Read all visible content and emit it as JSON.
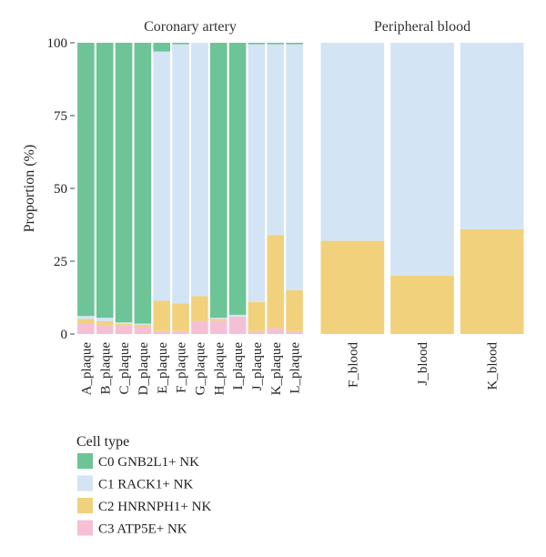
{
  "chart_data": {
    "type": "bar",
    "stacked": true,
    "ylabel": "Proportion (%)",
    "ylim": [
      0,
      100
    ],
    "yticks": [
      0,
      25,
      50,
      75,
      100
    ],
    "ytick_labels": [
      "0",
      "25",
      "50",
      "75",
      "100"
    ],
    "legend": {
      "title": "Cell type",
      "position": "bottom-left"
    },
    "series": [
      {
        "name": "C0 GNB2L1+ NK",
        "color": "#6cc497"
      },
      {
        "name": "C1 RACK1+ NK",
        "color": "#d3e4f4"
      },
      {
        "name": "C2 HNRNPH1+ NK",
        "color": "#f2d17d"
      },
      {
        "name": "C3 ATP5E+ NK",
        "color": "#f5c0d5"
      }
    ],
    "panels": [
      {
        "title": "Coronary artery",
        "categories": [
          "A_plaque",
          "B_plaque",
          "C_plaque",
          "D_plaque",
          "E_plaque",
          "F_plaque",
          "G_plaque",
          "H_plaque",
          "I_plaque",
          "J_plaque",
          "K_plaque",
          "L_plaque"
        ],
        "values": [
          [
            93.8,
            1.0,
            1.6,
            3.6
          ],
          [
            94.4,
            1.2,
            1.4,
            3.0
          ],
          [
            96.0,
            0.5,
            0.5,
            3.0
          ],
          [
            96.4,
            0.4,
            0.7,
            2.5
          ],
          [
            3.0,
            85.6,
            10.4,
            1.0
          ],
          [
            0.5,
            89.0,
            9.5,
            1.0
          ],
          [
            0.0,
            87.0,
            8.5,
            4.5
          ],
          [
            94.4,
            0.4,
            0.6,
            4.6
          ],
          [
            93.4,
            0.6,
            0.0,
            6.0
          ],
          [
            0.5,
            88.5,
            10.0,
            1.0
          ],
          [
            0.5,
            65.5,
            32.0,
            2.0
          ],
          [
            0.5,
            84.5,
            14.0,
            1.0
          ]
        ]
      },
      {
        "title": "Peripheral blood",
        "categories": [
          "F_blood",
          "J_blood",
          "K_blood"
        ],
        "values": [
          [
            0.0,
            68.0,
            32.0,
            0.0
          ],
          [
            0.0,
            80.0,
            20.0,
            0.0
          ],
          [
            0.0,
            64.0,
            36.0,
            0.0
          ]
        ]
      }
    ]
  }
}
